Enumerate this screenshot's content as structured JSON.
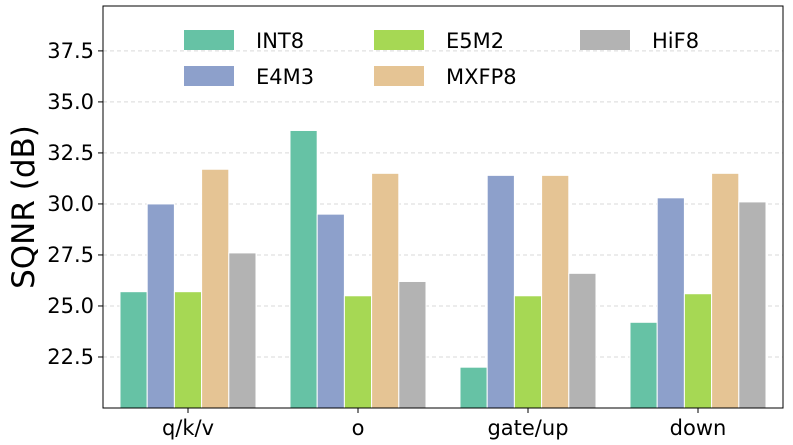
{
  "chart_data": {
    "type": "bar",
    "title": "",
    "xlabel": "",
    "ylabel": "SQNR (dB)",
    "ylim": [
      20.0,
      39.7
    ],
    "yticks": [
      "22.5",
      "25.0",
      "27.5",
      "30.0",
      "32.5",
      "35.0",
      "37.5"
    ],
    "grid": true,
    "legend_position": "top",
    "categories": [
      "q/k/v",
      "o",
      "gate/up",
      "down"
    ],
    "series": [
      {
        "name": "INT8",
        "color": "#66c2a5",
        "values": [
          25.7,
          33.6,
          22.0,
          24.2
        ]
      },
      {
        "name": "E4M3",
        "color": "#8da0cb",
        "values": [
          30.0,
          29.5,
          31.4,
          30.3
        ]
      },
      {
        "name": "E5M2",
        "color": "#a6d854",
        "values": [
          25.7,
          25.5,
          25.5,
          25.6
        ]
      },
      {
        "name": "MXFP8",
        "color": "#e5c494",
        "values": [
          31.7,
          31.5,
          31.4,
          31.5
        ]
      },
      {
        "name": "HiF8",
        "color": "#b3b3b3",
        "values": [
          27.6,
          26.2,
          26.6,
          30.1
        ]
      }
    ]
  }
}
